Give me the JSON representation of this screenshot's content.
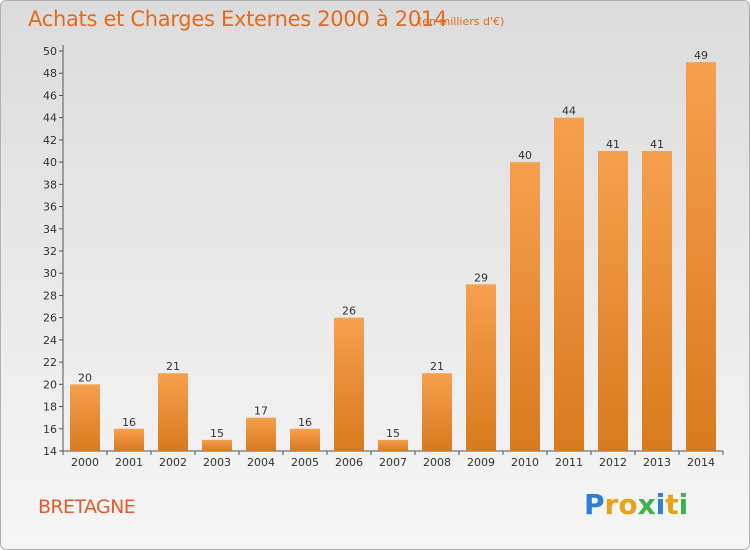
{
  "chart_data": {
    "type": "bar",
    "title": "Achats et Charges Externes 2000 à 2014",
    "unit_label": "(en milliers d'€)",
    "categories": [
      "2000",
      "2001",
      "2002",
      "2003",
      "2004",
      "2005",
      "2006",
      "2007",
      "2008",
      "2009",
      "2010",
      "2011",
      "2012",
      "2013",
      "2014"
    ],
    "values": [
      20,
      16,
      21,
      15,
      17,
      16,
      26,
      15,
      21,
      29,
      40,
      44,
      41,
      41,
      49
    ],
    "data_labels": [
      "20",
      "16",
      "21",
      "15",
      "17",
      "16",
      "26",
      "15",
      "21",
      "29",
      "40",
      "44",
      "41",
      "41",
      "49"
    ],
    "ylim": [
      14,
      50
    ],
    "yticks": [
      14,
      16,
      18,
      20,
      22,
      24,
      26,
      28,
      30,
      32,
      34,
      36,
      38,
      40,
      42,
      44,
      46,
      48,
      50
    ],
    "xlabel": "",
    "ylabel": "",
    "grid": false,
    "bar_color_top": "#f6a04e",
    "bar_color_bottom": "#d97a1e"
  },
  "region": "BRETAGNE",
  "brand": {
    "letters": [
      "P",
      "r",
      "o",
      "x",
      "i",
      "t",
      "i"
    ],
    "colors": [
      "#2f7fd6",
      "#e8a21a",
      "#e8a21a",
      "#3db349",
      "#2f7fd6",
      "#e8a21a",
      "#3db349"
    ]
  },
  "colors": {
    "accent": "#e46a1e"
  }
}
